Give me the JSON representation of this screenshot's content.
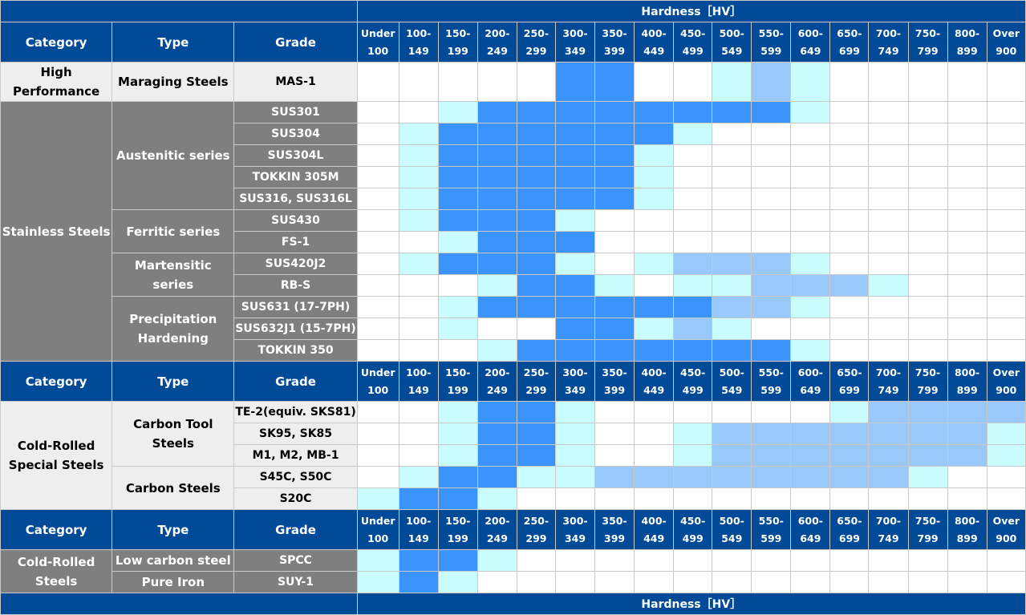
{
  "hardness_title": "Hardness［HV］",
  "column_headers": {
    "category": "Category",
    "type": "Type",
    "grade": "Grade"
  },
  "hardness_ranges": [
    [
      "Under",
      "100"
    ],
    [
      "100-",
      "149"
    ],
    [
      "150-",
      "199"
    ],
    [
      "200-",
      "249"
    ],
    [
      "250-",
      "299"
    ],
    [
      "300-",
      "349"
    ],
    [
      "350-",
      "399"
    ],
    [
      "400-",
      "449"
    ],
    [
      "450-",
      "499"
    ],
    [
      "500-",
      "549"
    ],
    [
      "550-",
      "599"
    ],
    [
      "600-",
      "649"
    ],
    [
      "650-",
      "699"
    ],
    [
      "700-",
      "749"
    ],
    [
      "750-",
      "799"
    ],
    [
      "800-",
      "899"
    ],
    [
      "Over",
      "900"
    ]
  ],
  "colors": {
    "none": "#ffffff",
    "light_cyan": "#c9fdfd",
    "blue": "#3b94fb",
    "light_blue": "#99c8fa"
  },
  "sections": [
    {
      "categories": [
        {
          "label_lines": [
            "High",
            "Performance"
          ],
          "style": "light",
          "types": [
            {
              "label_lines": [
                "Maraging Steels"
              ],
              "grades": [
                {
                  "grade": "MAS-1",
                  "levels": [
                    0,
                    0,
                    0,
                    0,
                    0,
                    2,
                    2,
                    0,
                    0,
                    1,
                    3,
                    1,
                    0,
                    0,
                    0,
                    0,
                    0
                  ]
                }
              ]
            }
          ]
        },
        {
          "label_lines": [
            "Stainless Steels"
          ],
          "style": "dark",
          "types": [
            {
              "label_lines": [
                "Austenitic series"
              ],
              "grades": [
                {
                  "grade": "SUS301",
                  "levels": [
                    0,
                    0,
                    1,
                    2,
                    2,
                    2,
                    2,
                    2,
                    2,
                    2,
                    2,
                    1,
                    0,
                    0,
                    0,
                    0,
                    0
                  ]
                },
                {
                  "grade": "SUS304",
                  "levels": [
                    0,
                    1,
                    2,
                    2,
                    2,
                    2,
                    2,
                    2,
                    1,
                    0,
                    0,
                    0,
                    0,
                    0,
                    0,
                    0,
                    0
                  ]
                },
                {
                  "grade": "SUS304L",
                  "levels": [
                    0,
                    1,
                    2,
                    2,
                    2,
                    2,
                    2,
                    1,
                    0,
                    0,
                    0,
                    0,
                    0,
                    0,
                    0,
                    0,
                    0
                  ]
                },
                {
                  "grade": "TOKKIN 305M",
                  "levels": [
                    0,
                    1,
                    2,
                    2,
                    2,
                    2,
                    2,
                    1,
                    0,
                    0,
                    0,
                    0,
                    0,
                    0,
                    0,
                    0,
                    0
                  ]
                },
                {
                  "grade": "SUS316, SUS316L",
                  "levels": [
                    0,
                    1,
                    2,
                    2,
                    2,
                    2,
                    2,
                    1,
                    0,
                    0,
                    0,
                    0,
                    0,
                    0,
                    0,
                    0,
                    0
                  ]
                }
              ]
            },
            {
              "label_lines": [
                "Ferritic series"
              ],
              "grades": [
                {
                  "grade": "SUS430",
                  "levels": [
                    0,
                    1,
                    2,
                    2,
                    2,
                    1,
                    0,
                    0,
                    0,
                    0,
                    0,
                    0,
                    0,
                    0,
                    0,
                    0,
                    0
                  ]
                },
                {
                  "grade": "FS-1",
                  "levels": [
                    0,
                    0,
                    1,
                    2,
                    2,
                    2,
                    0,
                    0,
                    0,
                    0,
                    0,
                    0,
                    0,
                    0,
                    0,
                    0,
                    0
                  ]
                }
              ]
            },
            {
              "label_lines": [
                "Martensitic series"
              ],
              "grades": [
                {
                  "grade": "SUS420J2",
                  "levels": [
                    0,
                    1,
                    2,
                    2,
                    2,
                    1,
                    0,
                    1,
                    3,
                    3,
                    3,
                    1,
                    0,
                    0,
                    0,
                    0,
                    0
                  ]
                },
                {
                  "grade": "RB-S",
                  "levels": [
                    0,
                    0,
                    0,
                    1,
                    2,
                    2,
                    1,
                    0,
                    1,
                    1,
                    3,
                    3,
                    3,
                    1,
                    0,
                    0,
                    0
                  ]
                }
              ]
            },
            {
              "label_lines": [
                "Precipitation",
                "Hardening"
              ],
              "grades": [
                {
                  "grade": "SUS631 (17-7PH)",
                  "levels": [
                    0,
                    0,
                    1,
                    2,
                    2,
                    2,
                    2,
                    2,
                    2,
                    3,
                    3,
                    1,
                    0,
                    0,
                    0,
                    0,
                    0
                  ]
                },
                {
                  "grade": "SUS632J1 (15-7PH)",
                  "levels": [
                    0,
                    0,
                    1,
                    0,
                    0,
                    2,
                    2,
                    1,
                    3,
                    1,
                    0,
                    0,
                    0,
                    0,
                    0,
                    0,
                    0
                  ]
                },
                {
                  "grade": "TOKKIN 350",
                  "levels": [
                    0,
                    0,
                    0,
                    1,
                    2,
                    2,
                    2,
                    2,
                    2,
                    2,
                    2,
                    1,
                    0,
                    0,
                    0,
                    0,
                    0
                  ]
                }
              ]
            }
          ]
        }
      ]
    },
    {
      "categories": [
        {
          "label_lines": [
            "Cold-Rolled",
            "Special Steels"
          ],
          "style": "light",
          "types": [
            {
              "label_lines": [
                "Carbon Tool Steels"
              ],
              "grades": [
                {
                  "grade": "TE-2(equiv. SKS81)",
                  "levels": [
                    0,
                    0,
                    1,
                    2,
                    2,
                    1,
                    0,
                    0,
                    0,
                    0,
                    0,
                    0,
                    1,
                    3,
                    3,
                    3,
                    3
                  ]
                },
                {
                  "grade": "SK95, SK85",
                  "levels": [
                    0,
                    0,
                    1,
                    2,
                    2,
                    1,
                    0,
                    0,
                    1,
                    3,
                    3,
                    3,
                    3,
                    3,
                    3,
                    3,
                    1
                  ]
                },
                {
                  "grade": "M1, M2, MB-1",
                  "levels": [
                    0,
                    0,
                    1,
                    2,
                    2,
                    1,
                    0,
                    0,
                    1,
                    3,
                    3,
                    3,
                    3,
                    3,
                    3,
                    3,
                    1
                  ]
                }
              ]
            },
            {
              "label_lines": [
                "Carbon Steels"
              ],
              "grades": [
                {
                  "grade": "S45C, S50C",
                  "levels": [
                    0,
                    1,
                    2,
                    2,
                    1,
                    1,
                    3,
                    3,
                    3,
                    3,
                    3,
                    3,
                    3,
                    3,
                    1,
                    0,
                    0
                  ]
                },
                {
                  "grade": "S20C",
                  "levels": [
                    1,
                    2,
                    2,
                    1,
                    0,
                    0,
                    0,
                    0,
                    0,
                    0,
                    0,
                    0,
                    0,
                    0,
                    0,
                    0,
                    0
                  ]
                }
              ]
            }
          ]
        }
      ]
    },
    {
      "categories": [
        {
          "label_lines": [
            "Cold-Rolled",
            "Steels"
          ],
          "style": "dark",
          "types": [
            {
              "label_lines": [
                "Low carbon steel"
              ],
              "style": "dark",
              "grades": [
                {
                  "grade": "SPCC",
                  "levels": [
                    1,
                    2,
                    2,
                    1,
                    0,
                    0,
                    0,
                    0,
                    0,
                    0,
                    0,
                    0,
                    0,
                    0,
                    0,
                    0,
                    0
                  ]
                }
              ]
            },
            {
              "label_lines": [
                "Pure Iron"
              ],
              "style": "dark",
              "grades": [
                {
                  "grade": "SUY-1",
                  "levels": [
                    1,
                    2,
                    1,
                    0,
                    0,
                    0,
                    0,
                    0,
                    0,
                    0,
                    0,
                    0,
                    0,
                    0,
                    0,
                    0,
                    0
                  ]
                }
              ]
            }
          ]
        }
      ]
    }
  ]
}
